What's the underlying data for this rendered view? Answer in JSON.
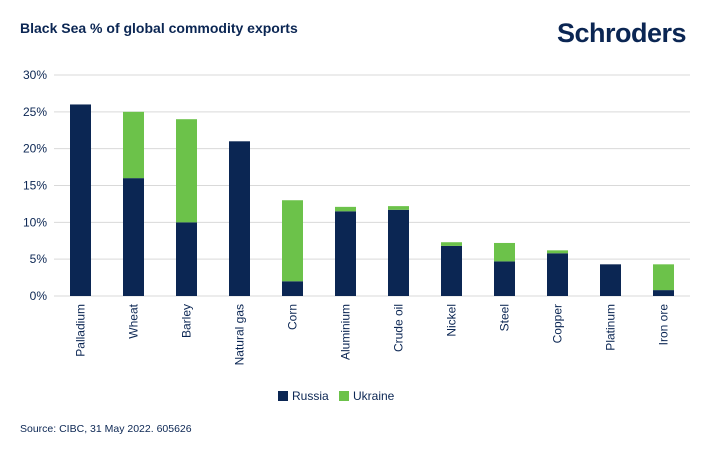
{
  "header": {
    "title": "Black Sea % of global commodity exports",
    "brand": "Schroders"
  },
  "footer": {
    "source": "Source: CIBC, 31 May 2022. 605626"
  },
  "colors": {
    "russia": "#0b2653",
    "ukraine": "#6cc24a",
    "grid": "#d9d9d9",
    "text": "#0b2653"
  },
  "chart_data": {
    "type": "bar",
    "stacked": true,
    "title": "Black Sea % of global commodity exports",
    "xlabel": "",
    "ylabel": "",
    "ylim": [
      0,
      30
    ],
    "yticks": [
      0,
      5,
      10,
      15,
      20,
      25,
      30
    ],
    "ytick_labels": [
      "0%",
      "5%",
      "10%",
      "15%",
      "20%",
      "25%",
      "30%"
    ],
    "grid": true,
    "legend_position": "bottom-center",
    "categories": [
      "Palladium",
      "Wheat",
      "Barley",
      "Natural gas",
      "Corn",
      "Aluminium",
      "Crude oil",
      "Nickel",
      "Steel",
      "Copper",
      "Platinum",
      "Iron ore"
    ],
    "series": [
      {
        "name": "Russia",
        "values": [
          26,
          16,
          10,
          21,
          2,
          11.5,
          11.7,
          6.8,
          4.7,
          5.8,
          4.3,
          0.8
        ]
      },
      {
        "name": "Ukraine",
        "values": [
          0,
          9,
          14,
          0,
          11,
          0.6,
          0.5,
          0.5,
          2.5,
          0.4,
          0,
          3.5
        ]
      }
    ]
  }
}
